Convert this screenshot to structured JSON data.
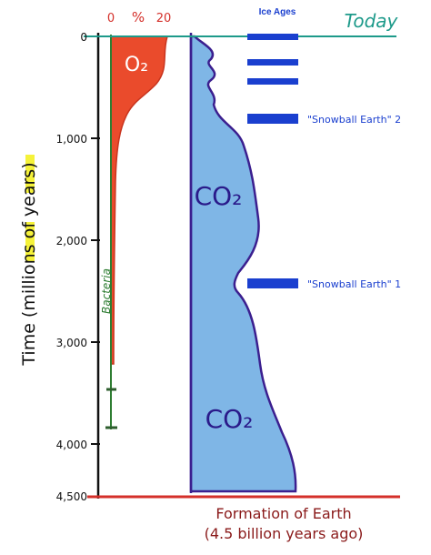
{
  "o2_scale": {
    "min": "0",
    "unit": "%",
    "max": "20"
  },
  "labels": {
    "o2": "O₂",
    "co2_upper": "CO₂",
    "co2_lower": "CO₂",
    "bacteria": "Bacteria",
    "today": "Today"
  },
  "ice_ages": {
    "title": "Ice Ages",
    "snowball_2": "\"Snowball Earth\" 2",
    "snowball_1": "\"Snowball Earth\" 1"
  },
  "time_axis": {
    "title": "Time (millions of years)",
    "ticks": [
      "0",
      "1,000",
      "2,000",
      "3,000",
      "4,000",
      "4,500"
    ]
  },
  "footer": {
    "line1": "Formation of Earth",
    "line2": "(4.5 billion years ago)"
  }
}
